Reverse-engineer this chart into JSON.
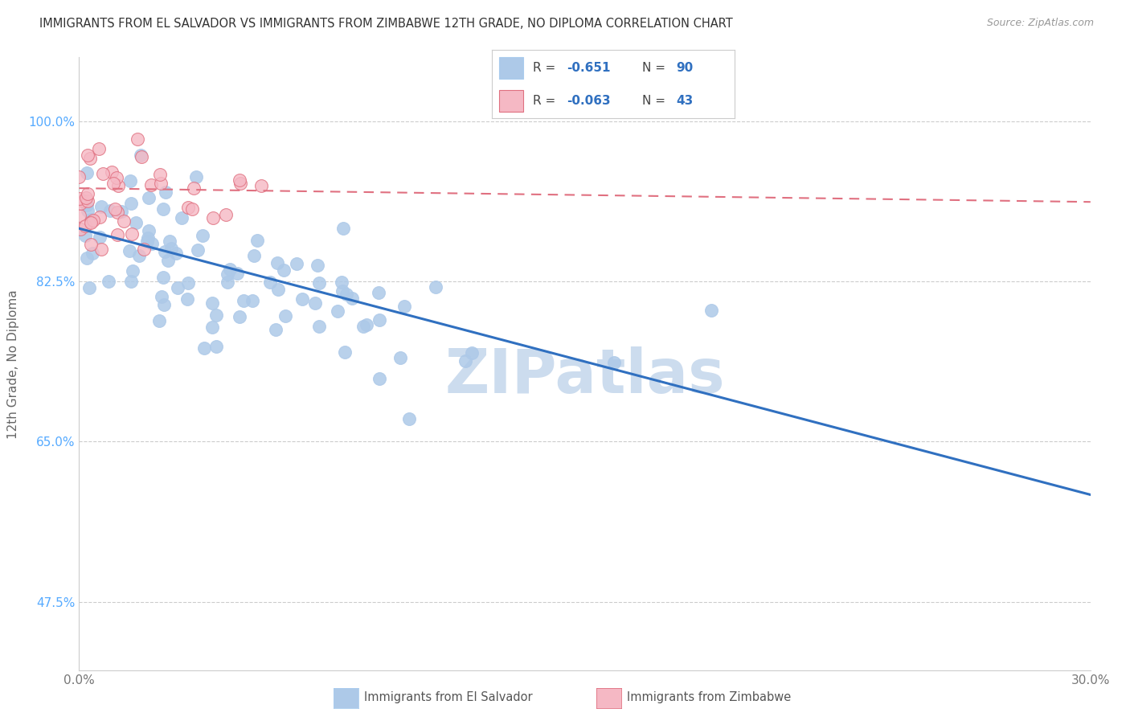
{
  "title": "IMMIGRANTS FROM EL SALVADOR VS IMMIGRANTS FROM ZIMBABWE 12TH GRADE, NO DIPLOMA CORRELATION CHART",
  "source": "Source: ZipAtlas.com",
  "ylabel_label": "12th Grade, No Diploma",
  "legend_label_blue": "Immigrants from El Salvador",
  "legend_label_pink": "Immigrants from Zimbabwe",
  "R_blue": -0.651,
  "N_blue": 90,
  "R_pink": -0.063,
  "N_pink": 43,
  "blue_color": "#adc9e8",
  "blue_edge_color": "#adc9e8",
  "blue_line_color": "#3070c0",
  "pink_color": "#f5b8c4",
  "pink_edge_color": "#e07080",
  "pink_line_color": "#e07080",
  "blue_seed": 7,
  "pink_seed": 13,
  "xlim": [
    0.0,
    0.3
  ],
  "ylim": [
    0.4,
    1.07
  ],
  "ytick_vals": [
    47.5,
    65.0,
    82.5,
    100.0
  ],
  "xtick_vals": [
    0.0,
    0.3
  ],
  "xtick_labels": [
    "0.0%",
    "30.0%"
  ],
  "background_color": "#ffffff",
  "watermark": "ZIPatlas",
  "watermark_color": "#ccdcee",
  "watermark_fontsize": 55,
  "blue_trend_x0": 0.0,
  "blue_trend_y0": 0.883,
  "blue_trend_x1": 0.3,
  "blue_trend_y1": 0.592,
  "pink_trend_x0": 0.0,
  "pink_trend_y0": 0.927,
  "pink_trend_x1": 0.3,
  "pink_trend_y1": 0.912
}
